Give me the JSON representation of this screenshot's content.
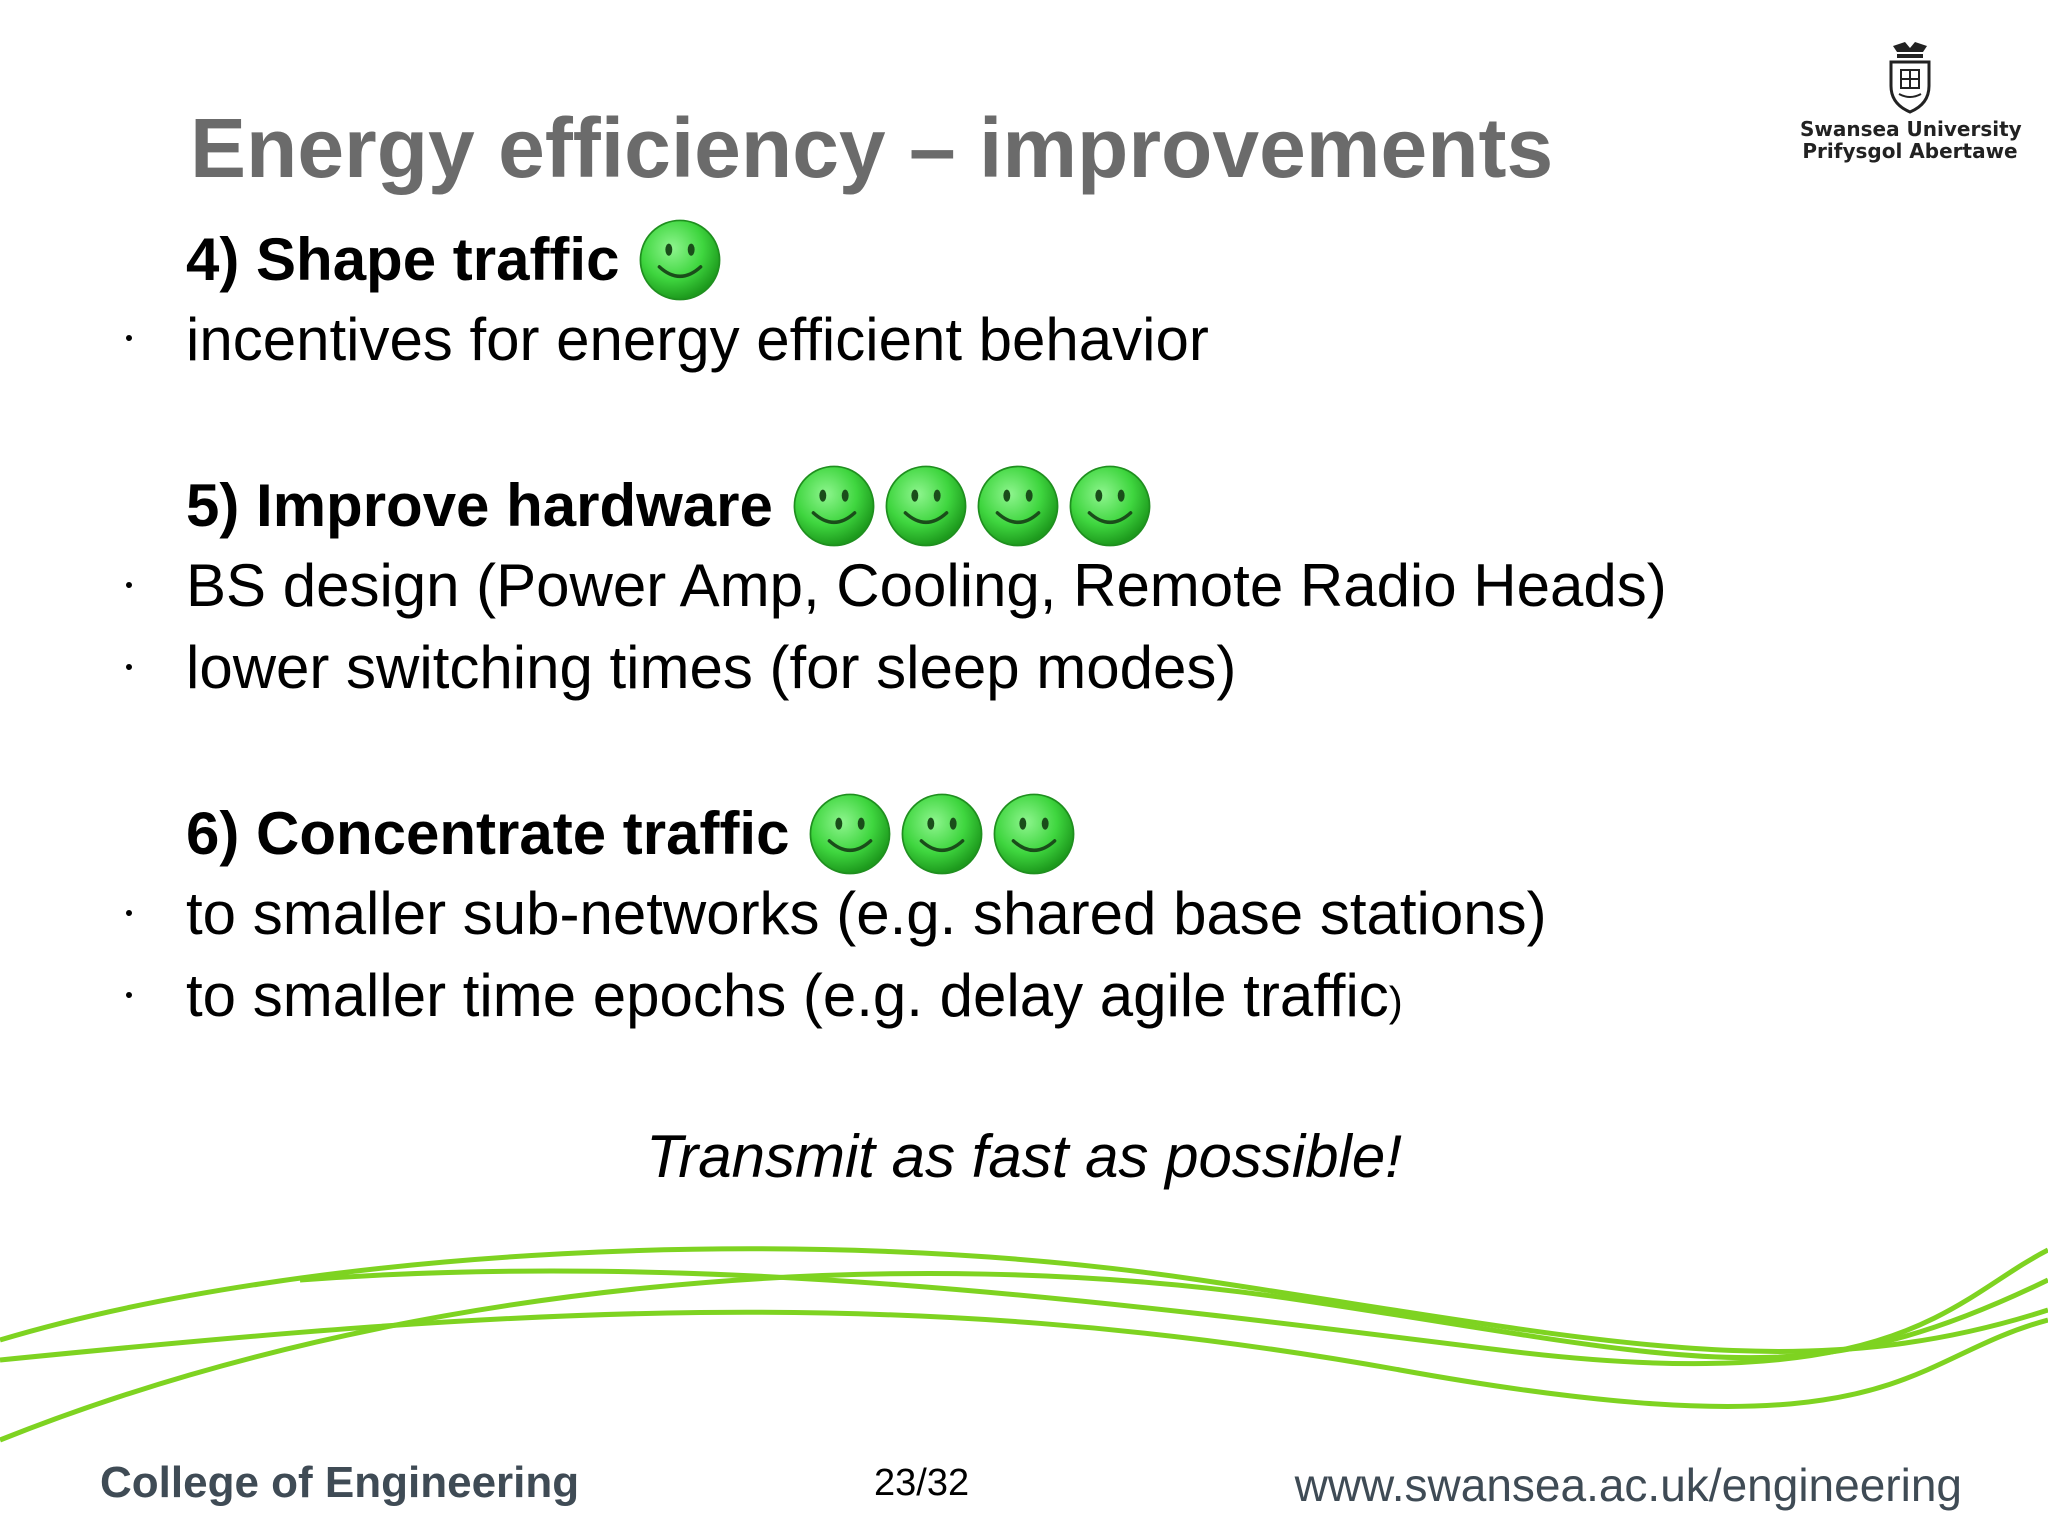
{
  "slide": {
    "title": "Energy efficiency – improvements",
    "logo": {
      "line1": "Swansea University",
      "line2": "Prifysgol Abertawe",
      "icon": "university-crest-icon"
    },
    "sections": [
      {
        "heading": "4) Shape traffic",
        "smiley_count": 1,
        "bullets": [
          "incentives for energy efficient behavior"
        ]
      },
      {
        "heading": "5) Improve hardware",
        "smiley_count": 4,
        "bullets": [
          "BS design (Power Amp, Cooling, Remote Radio Heads)",
          "lower switching times (for sleep modes)"
        ]
      },
      {
        "heading": "6) Concentrate traffic",
        "smiley_count": 3,
        "bullets": [
          "to smaller sub-networks (e.g. shared base stations)",
          "to smaller time epochs (e.g. delay agile traffic"
        ],
        "last_bullet_suffix": ")"
      }
    ],
    "tagline": "Transmit as fast as possible!",
    "footer": {
      "left": "College of Engineering",
      "page": "23/32",
      "right": "www.swansea.ac.uk/engineering"
    },
    "colors": {
      "title": "#6b6b6b",
      "accent_green": "#7ed321",
      "smiley_green": "#3fd63f",
      "footer_text": "#3f4b55"
    }
  }
}
